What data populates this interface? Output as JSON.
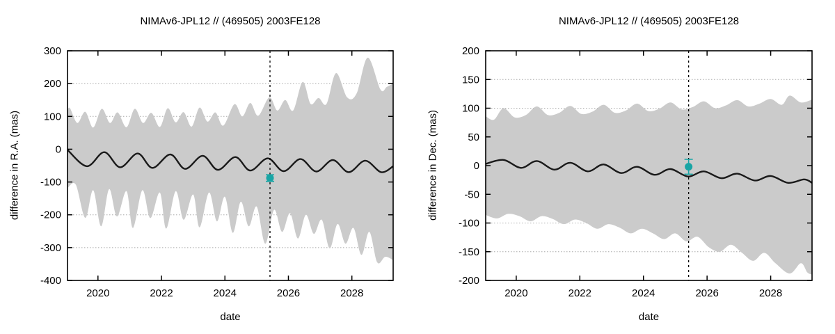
{
  "page": {
    "background": "#ffffff"
  },
  "chart_data": [
    {
      "type": "line+band",
      "title": "NIMAv6-JPL12 // (469505) 2003FE128",
      "xlabel": "date",
      "ylabel": "difference in R.A. (mas)",
      "x_range": [
        2019.04,
        2029.3
      ],
      "y_range": [
        -400,
        300
      ],
      "x_ticks": [
        2020,
        2022,
        2024,
        2026,
        2028
      ],
      "y_ticks": [
        300,
        200,
        100,
        0,
        -100,
        -200,
        -300,
        -400
      ],
      "grid": "y-only-dotted",
      "legend": "none",
      "band_color": "#cbcbcb",
      "line_color": "#1a1a1a",
      "grid_color": "#a8a8a8",
      "epoch_line": {
        "x": 2025.42,
        "style": "dashed-black"
      },
      "observation_point": {
        "x": 2025.42,
        "y": -88,
        "err": 10,
        "color": "#18a5a5"
      },
      "band_upper": [
        [
          2019.04,
          118
        ],
        [
          2019.12,
          125
        ],
        [
          2019.35,
          80
        ],
        [
          2019.6,
          114
        ],
        [
          2019.85,
          66
        ],
        [
          2020.12,
          123
        ],
        [
          2020.38,
          80
        ],
        [
          2020.62,
          112
        ],
        [
          2020.9,
          67
        ],
        [
          2021.16,
          123
        ],
        [
          2021.42,
          80
        ],
        [
          2021.68,
          111
        ],
        [
          2021.95,
          68
        ],
        [
          2022.2,
          125
        ],
        [
          2022.45,
          82
        ],
        [
          2022.7,
          113
        ],
        [
          2022.95,
          69
        ],
        [
          2023.2,
          127
        ],
        [
          2023.45,
          84
        ],
        [
          2023.7,
          112
        ],
        [
          2023.95,
          72
        ],
        [
          2024.3,
          137
        ],
        [
          2024.55,
          100
        ],
        [
          2024.8,
          141
        ],
        [
          2025.05,
          102
        ],
        [
          2025.4,
          158
        ],
        [
          2025.65,
          118
        ],
        [
          2025.9,
          150
        ],
        [
          2026.15,
          118
        ],
        [
          2026.45,
          205
        ],
        [
          2026.7,
          138
        ],
        [
          2026.95,
          156
        ],
        [
          2027.2,
          138
        ],
        [
          2027.5,
          232
        ],
        [
          2027.85,
          158
        ],
        [
          2028.15,
          170
        ],
        [
          2028.5,
          279
        ],
        [
          2028.9,
          182
        ],
        [
          2029.1,
          190
        ],
        [
          2029.3,
          200
        ]
      ],
      "band_lower": [
        [
          2019.04,
          -118
        ],
        [
          2019.3,
          -108
        ],
        [
          2019.6,
          -209
        ],
        [
          2019.85,
          -125
        ],
        [
          2020.1,
          -235
        ],
        [
          2020.35,
          -122
        ],
        [
          2020.6,
          -205
        ],
        [
          2020.9,
          -128
        ],
        [
          2021.1,
          -240
        ],
        [
          2021.4,
          -125
        ],
        [
          2021.65,
          -210
        ],
        [
          2021.95,
          -132
        ],
        [
          2022.15,
          -242
        ],
        [
          2022.45,
          -128
        ],
        [
          2022.7,
          -215
        ],
        [
          2023.0,
          -138
        ],
        [
          2023.2,
          -238
        ],
        [
          2023.5,
          -132
        ],
        [
          2023.75,
          -220
        ],
        [
          2024.0,
          -145
        ],
        [
          2024.25,
          -255
        ],
        [
          2024.5,
          -160
        ],
        [
          2024.75,
          -235
        ],
        [
          2025.0,
          -175
        ],
        [
          2025.27,
          -288
        ],
        [
          2025.55,
          -185
        ],
        [
          2025.8,
          -252
        ],
        [
          2026.05,
          -195
        ],
        [
          2026.3,
          -272
        ],
        [
          2026.55,
          -200
        ],
        [
          2026.8,
          -258
        ],
        [
          2027.05,
          -215
        ],
        [
          2027.3,
          -302
        ],
        [
          2027.55,
          -228
        ],
        [
          2027.8,
          -288
        ],
        [
          2028.05,
          -240
        ],
        [
          2028.3,
          -322
        ],
        [
          2028.55,
          -252
        ],
        [
          2028.8,
          -345
        ],
        [
          2029.05,
          -328
        ],
        [
          2029.3,
          -338
        ]
      ],
      "center_line": [
        [
          2019.04,
          -2
        ],
        [
          2019.65,
          -52
        ],
        [
          2020.2,
          -9
        ],
        [
          2020.7,
          -55
        ],
        [
          2021.25,
          -13
        ],
        [
          2021.72,
          -57
        ],
        [
          2022.28,
          -16
        ],
        [
          2022.75,
          -60
        ],
        [
          2023.3,
          -20
        ],
        [
          2023.78,
          -63
        ],
        [
          2024.33,
          -24
        ],
        [
          2024.8,
          -65
        ],
        [
          2025.35,
          -28
        ],
        [
          2025.85,
          -67
        ],
        [
          2026.38,
          -30
        ],
        [
          2026.88,
          -68
        ],
        [
          2027.4,
          -33
        ],
        [
          2027.9,
          -70
        ],
        [
          2028.42,
          -35
        ],
        [
          2028.92,
          -70
        ],
        [
          2029.3,
          -52
        ]
      ]
    },
    {
      "type": "line+band",
      "title": "NIMAv6-JPL12 // (469505) 2003FE128",
      "xlabel": "date",
      "ylabel": "difference in Dec. (mas)",
      "x_range": [
        2019.04,
        2029.3
      ],
      "y_range": [
        -200,
        200
      ],
      "x_ticks": [
        2020,
        2022,
        2024,
        2026,
        2028
      ],
      "y_ticks": [
        200,
        150,
        100,
        50,
        0,
        -50,
        -100,
        -150,
        -200
      ],
      "grid": "y-only-dotted",
      "legend": "none",
      "band_color": "#cbcbcb",
      "line_color": "#1a1a1a",
      "grid_color": "#a8a8a8",
      "epoch_line": {
        "x": 2025.42,
        "style": "dashed-black"
      },
      "observation_point": {
        "x": 2025.42,
        "y": -2,
        "err": 13,
        "color": "#18a5a5"
      },
      "band_upper": [
        [
          2019.04,
          86
        ],
        [
          2019.3,
          80
        ],
        [
          2019.6,
          100
        ],
        [
          2019.95,
          84
        ],
        [
          2020.3,
          88
        ],
        [
          2020.65,
          103
        ],
        [
          2021.0,
          88
        ],
        [
          2021.35,
          92
        ],
        [
          2021.7,
          104
        ],
        [
          2022.05,
          90
        ],
        [
          2022.4,
          94
        ],
        [
          2022.75,
          106
        ],
        [
          2023.1,
          92
        ],
        [
          2023.45,
          96
        ],
        [
          2023.8,
          108
        ],
        [
          2024.15,
          95
        ],
        [
          2024.5,
          99
        ],
        [
          2024.85,
          110
        ],
        [
          2025.2,
          98
        ],
        [
          2025.55,
          102
        ],
        [
          2025.9,
          112
        ],
        [
          2026.25,
          100
        ],
        [
          2026.6,
          105
        ],
        [
          2026.95,
          114
        ],
        [
          2027.3,
          103
        ],
        [
          2027.65,
          108
        ],
        [
          2028.0,
          116
        ],
        [
          2028.35,
          106
        ],
        [
          2028.6,
          122
        ],
        [
          2028.95,
          110
        ],
        [
          2029.3,
          115
        ]
      ],
      "band_lower": [
        [
          2019.04,
          -86
        ],
        [
          2019.4,
          -92
        ],
        [
          2019.75,
          -84
        ],
        [
          2020.1,
          -88
        ],
        [
          2020.45,
          -97
        ],
        [
          2020.8,
          -88
        ],
        [
          2021.15,
          -93
        ],
        [
          2021.5,
          -102
        ],
        [
          2021.85,
          -94
        ],
        [
          2022.2,
          -100
        ],
        [
          2022.55,
          -110
        ],
        [
          2022.9,
          -102
        ],
        [
          2023.25,
          -108
        ],
        [
          2023.6,
          -118
        ],
        [
          2023.95,
          -110
        ],
        [
          2024.3,
          -118
        ],
        [
          2024.65,
          -128
        ],
        [
          2025.0,
          -118
        ],
        [
          2025.35,
          -132
        ],
        [
          2025.7,
          -124
        ],
        [
          2026.05,
          -142
        ],
        [
          2026.4,
          -150
        ],
        [
          2026.75,
          -138
        ],
        [
          2027.1,
          -152
        ],
        [
          2027.45,
          -166
        ],
        [
          2027.8,
          -152
        ],
        [
          2028.15,
          -170
        ],
        [
          2028.6,
          -188
        ],
        [
          2028.95,
          -170
        ],
        [
          2029.15,
          -186
        ],
        [
          2029.3,
          -190
        ]
      ],
      "center_line": [
        [
          2019.04,
          3
        ],
        [
          2019.6,
          10
        ],
        [
          2020.15,
          -4
        ],
        [
          2020.65,
          8
        ],
        [
          2021.2,
          -7
        ],
        [
          2021.7,
          5
        ],
        [
          2022.25,
          -10
        ],
        [
          2022.75,
          2
        ],
        [
          2023.3,
          -13
        ],
        [
          2023.8,
          -2
        ],
        [
          2024.35,
          -16
        ],
        [
          2024.85,
          -6
        ],
        [
          2025.4,
          -19
        ],
        [
          2025.9,
          -10
        ],
        [
          2026.45,
          -22
        ],
        [
          2026.95,
          -14
        ],
        [
          2027.5,
          -26
        ],
        [
          2028.0,
          -18
        ],
        [
          2028.55,
          -30
        ],
        [
          2029.05,
          -24
        ],
        [
          2029.3,
          -30
        ]
      ]
    }
  ]
}
